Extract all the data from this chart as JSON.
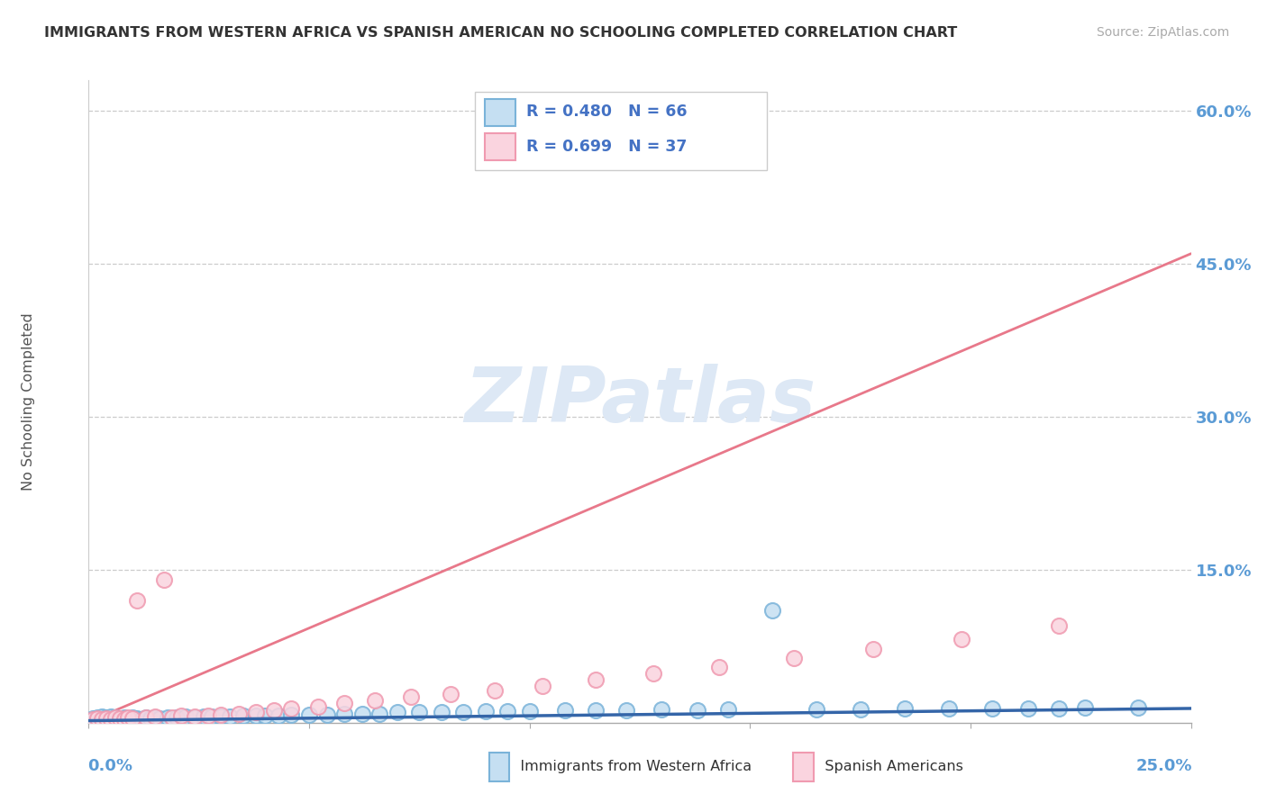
{
  "title": "IMMIGRANTS FROM WESTERN AFRICA VS SPANISH AMERICAN NO SCHOOLING COMPLETED CORRELATION CHART",
  "source": "Source: ZipAtlas.com",
  "ylabel": "No Schooling Completed",
  "xlim": [
    0.0,
    0.25
  ],
  "ylim": [
    0.0,
    0.63
  ],
  "yticks": [
    0.0,
    0.15,
    0.3,
    0.45,
    0.6
  ],
  "ytick_labels": [
    "",
    "15.0%",
    "30.0%",
    "45.0%",
    "60.0%"
  ],
  "xtick_left_label": "0.0%",
  "xtick_right_label": "25.0%",
  "series1_label": "Immigrants from Western Africa",
  "series1_edge_color": "#7ab3d9",
  "series1_face_color": "#c5dff2",
  "series1_line_color": "#3465a8",
  "series1_R": "0.480",
  "series1_N": "66",
  "series2_label": "Spanish Americans",
  "series2_edge_color": "#f09ab0",
  "series2_face_color": "#fad4df",
  "series2_line_color": "#e8788a",
  "series2_R": "0.699",
  "series2_N": "37",
  "watermark_text": "ZIPatlas",
  "watermark_color": "#dde8f5",
  "bg_color": "#ffffff",
  "grid_color": "#cccccc",
  "label_color": "#5b9bd5",
  "title_color": "#333333",
  "legend_text_color": "#4472c4",
  "legend_border_color": "#cccccc",
  "series1_x": [
    0.001,
    0.002,
    0.002,
    0.003,
    0.003,
    0.004,
    0.004,
    0.005,
    0.005,
    0.005,
    0.006,
    0.006,
    0.007,
    0.007,
    0.008,
    0.008,
    0.009,
    0.01,
    0.01,
    0.011,
    0.012,
    0.013,
    0.014,
    0.015,
    0.016,
    0.018,
    0.02,
    0.022,
    0.024,
    0.026,
    0.028,
    0.03,
    0.032,
    0.035,
    0.038,
    0.04,
    0.043,
    0.046,
    0.05,
    0.054,
    0.058,
    0.062,
    0.066,
    0.07,
    0.075,
    0.08,
    0.085,
    0.09,
    0.095,
    0.1,
    0.108,
    0.115,
    0.122,
    0.13,
    0.138,
    0.145,
    0.155,
    0.165,
    0.175,
    0.185,
    0.195,
    0.205,
    0.213,
    0.22,
    0.226,
    0.238
  ],
  "series1_y": [
    0.004,
    0.003,
    0.005,
    0.002,
    0.006,
    0.003,
    0.005,
    0.002,
    0.004,
    0.006,
    0.003,
    0.005,
    0.002,
    0.004,
    0.003,
    0.005,
    0.004,
    0.003,
    0.005,
    0.004,
    0.003,
    0.005,
    0.004,
    0.005,
    0.004,
    0.005,
    0.005,
    0.006,
    0.005,
    0.006,
    0.006,
    0.006,
    0.006,
    0.007,
    0.007,
    0.007,
    0.007,
    0.008,
    0.008,
    0.008,
    0.009,
    0.009,
    0.009,
    0.01,
    0.01,
    0.01,
    0.01,
    0.011,
    0.011,
    0.011,
    0.012,
    0.012,
    0.012,
    0.013,
    0.012,
    0.013,
    0.11,
    0.013,
    0.013,
    0.014,
    0.014,
    0.014,
    0.014,
    0.014,
    0.015,
    0.015
  ],
  "series2_x": [
    0.001,
    0.002,
    0.003,
    0.004,
    0.005,
    0.006,
    0.007,
    0.008,
    0.009,
    0.01,
    0.011,
    0.013,
    0.015,
    0.017,
    0.019,
    0.021,
    0.024,
    0.027,
    0.03,
    0.034,
    0.038,
    0.042,
    0.046,
    0.052,
    0.058,
    0.065,
    0.073,
    0.082,
    0.092,
    0.103,
    0.115,
    0.128,
    0.143,
    0.16,
    0.178,
    0.198,
    0.22
  ],
  "series2_y": [
    0.003,
    0.004,
    0.003,
    0.004,
    0.003,
    0.005,
    0.004,
    0.003,
    0.005,
    0.004,
    0.12,
    0.005,
    0.006,
    0.14,
    0.005,
    0.007,
    0.006,
    0.007,
    0.008,
    0.009,
    0.01,
    0.012,
    0.014,
    0.016,
    0.019,
    0.022,
    0.025,
    0.028,
    0.032,
    0.036,
    0.042,
    0.048,
    0.055,
    0.063,
    0.072,
    0.082,
    0.095
  ],
  "trend1_x0": 0.0,
  "trend1_x1": 0.25,
  "trend1_y0": 0.002,
  "trend1_y1": 0.014,
  "trend2_x0": 0.0,
  "trend2_x1": 0.25,
  "trend2_y0": 0.001,
  "trend2_y1": 0.46
}
